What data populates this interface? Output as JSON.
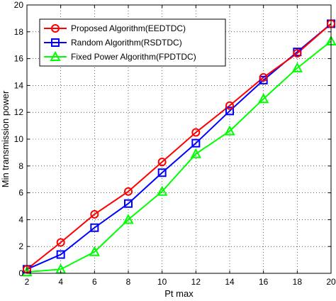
{
  "chart_data": {
    "type": "line",
    "xlabel": "Pt max",
    "ylabel": "Min transmission power",
    "xlim": [
      2,
      20
    ],
    "ylim": [
      0,
      20
    ],
    "xticks": [
      "2",
      "4",
      "6",
      "8",
      "10",
      "12",
      "14",
      "16",
      "18",
      "20"
    ],
    "yticks": [
      "0",
      "2",
      "4",
      "6",
      "8",
      "10",
      "12",
      "14",
      "16",
      "18",
      "20"
    ],
    "grid": true,
    "legend_position": "top-left",
    "x": [
      2,
      4,
      6,
      8,
      10,
      12,
      14,
      16,
      18,
      20
    ],
    "series": [
      {
        "name": "Proposed Algorithm(EEDTDC)",
        "color": "#ff0000",
        "marker": "circle",
        "values": [
          0.3,
          2.3,
          4.4,
          6.1,
          8.3,
          10.5,
          12.5,
          14.6,
          16.4,
          18.6
        ]
      },
      {
        "name": "Random Algorithm(RSDTDC)",
        "color": "#0000ff",
        "marker": "square",
        "values": [
          0.3,
          1.4,
          3.4,
          5.2,
          7.5,
          9.7,
          12.1,
          14.4,
          16.5,
          18.6
        ]
      },
      {
        "name": "Fixed Power Algorithm(FPDTDC)",
        "color": "#00ff00",
        "marker": "triangle",
        "values": [
          0.1,
          0.3,
          1.6,
          4.0,
          6.1,
          8.9,
          10.6,
          13.0,
          15.3,
          17.3
        ]
      }
    ]
  }
}
